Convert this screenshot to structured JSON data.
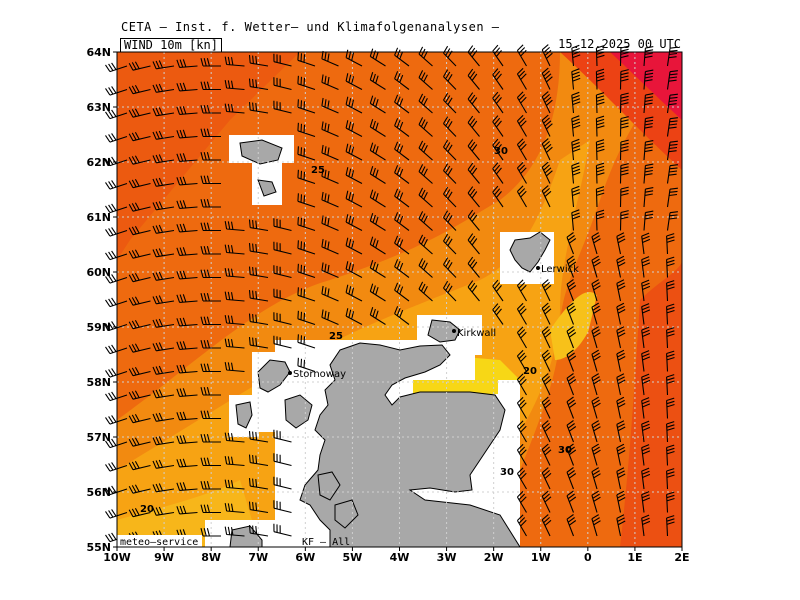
{
  "header": {
    "title": "CETA — Inst. f. Wetter— und Klimafolgenanalysen —",
    "field": "WIND 10m [kn]",
    "valid_time": "15.12.2025 00 UTC"
  },
  "axes": {
    "lon_ticks": [
      "10W",
      "9W",
      "8W",
      "7W",
      "6W",
      "5W",
      "4W",
      "3W",
      "2W",
      "1W",
      "0",
      "1E",
      "2E"
    ],
    "lat_ticks": [
      "64N",
      "63N",
      "62N",
      "61N",
      "60N",
      "59N",
      "58N",
      "57N",
      " 56N",
      "55N"
    ]
  },
  "places": [
    {
      "name": "Lerwick"
    },
    {
      "name": "Kirkwall"
    },
    {
      "name": "Stornoway"
    }
  ],
  "contour_labels": [
    "25",
    "30",
    "25",
    "20",
    "30",
    "30",
    "20"
  ],
  "footer": {
    "left": "meteo—service",
    "right": "KF — All"
  },
  "colors": {
    "band_15_20": "#f7c11a",
    "band_20_25": "#f7a313",
    "band_25_30": "#f28a10",
    "band_30_35": "#ee6a0f",
    "band_35_40": "#ec4214",
    "band_40_45": "#e8153a",
    "land": "#a8a8a8"
  }
}
